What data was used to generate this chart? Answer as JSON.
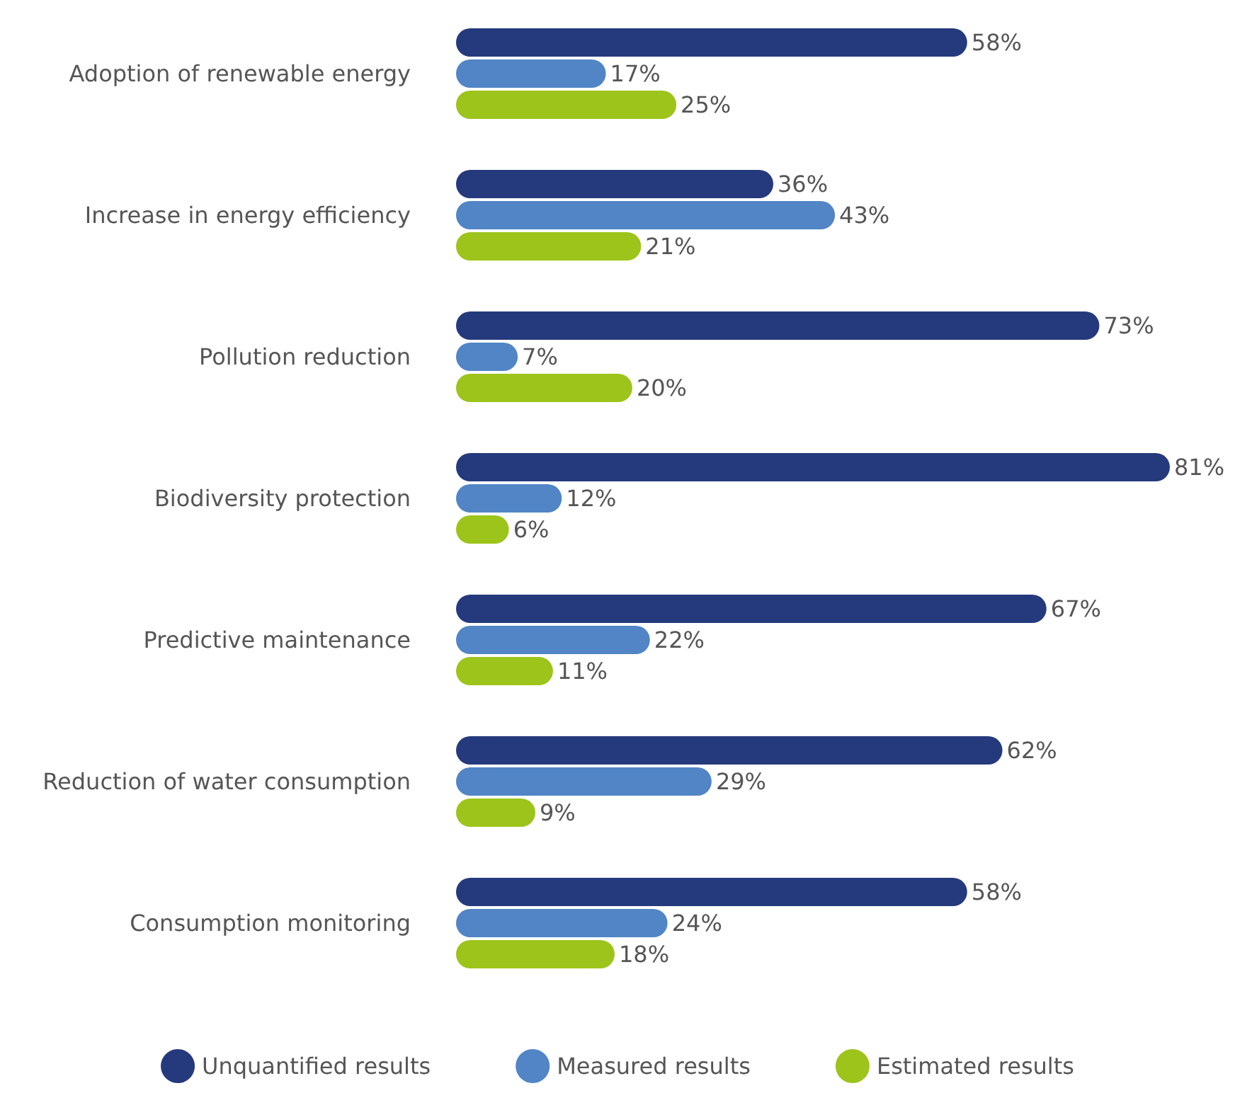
{
  "chart_data": {
    "type": "bar",
    "orientation": "horizontal",
    "categories": [
      "Adoption of renewable energy",
      "Increase in energy efficiency",
      "Pollution reduction",
      "Biodiversity protection",
      "Predictive maintenance",
      "Reduction of water consumption",
      "Consumption monitoring"
    ],
    "series": [
      {
        "name": "Unquantified results",
        "color": "#253a7c",
        "values": [
          58,
          36,
          73,
          81,
          67,
          62,
          58
        ],
        "value_labels": [
          "58%",
          "36%",
          "73%",
          "81%",
          "67%",
          "62%",
          "58%"
        ]
      },
      {
        "name": "Measured results",
        "color": "#5185c6",
        "values": [
          17,
          43,
          7,
          12,
          22,
          29,
          24
        ],
        "value_labels": [
          "17%",
          "43%",
          "7%",
          "12%",
          "22%",
          "29%",
          "24%"
        ]
      },
      {
        "name": "Estimated results",
        "color": "#9dc41a",
        "values": [
          25,
          21,
          20,
          6,
          11,
          9,
          18
        ],
        "value_labels": [
          "25%",
          "21%",
          "20%",
          "6%",
          "11%",
          "9%",
          "18%"
        ]
      }
    ],
    "legend": "bottom"
  }
}
